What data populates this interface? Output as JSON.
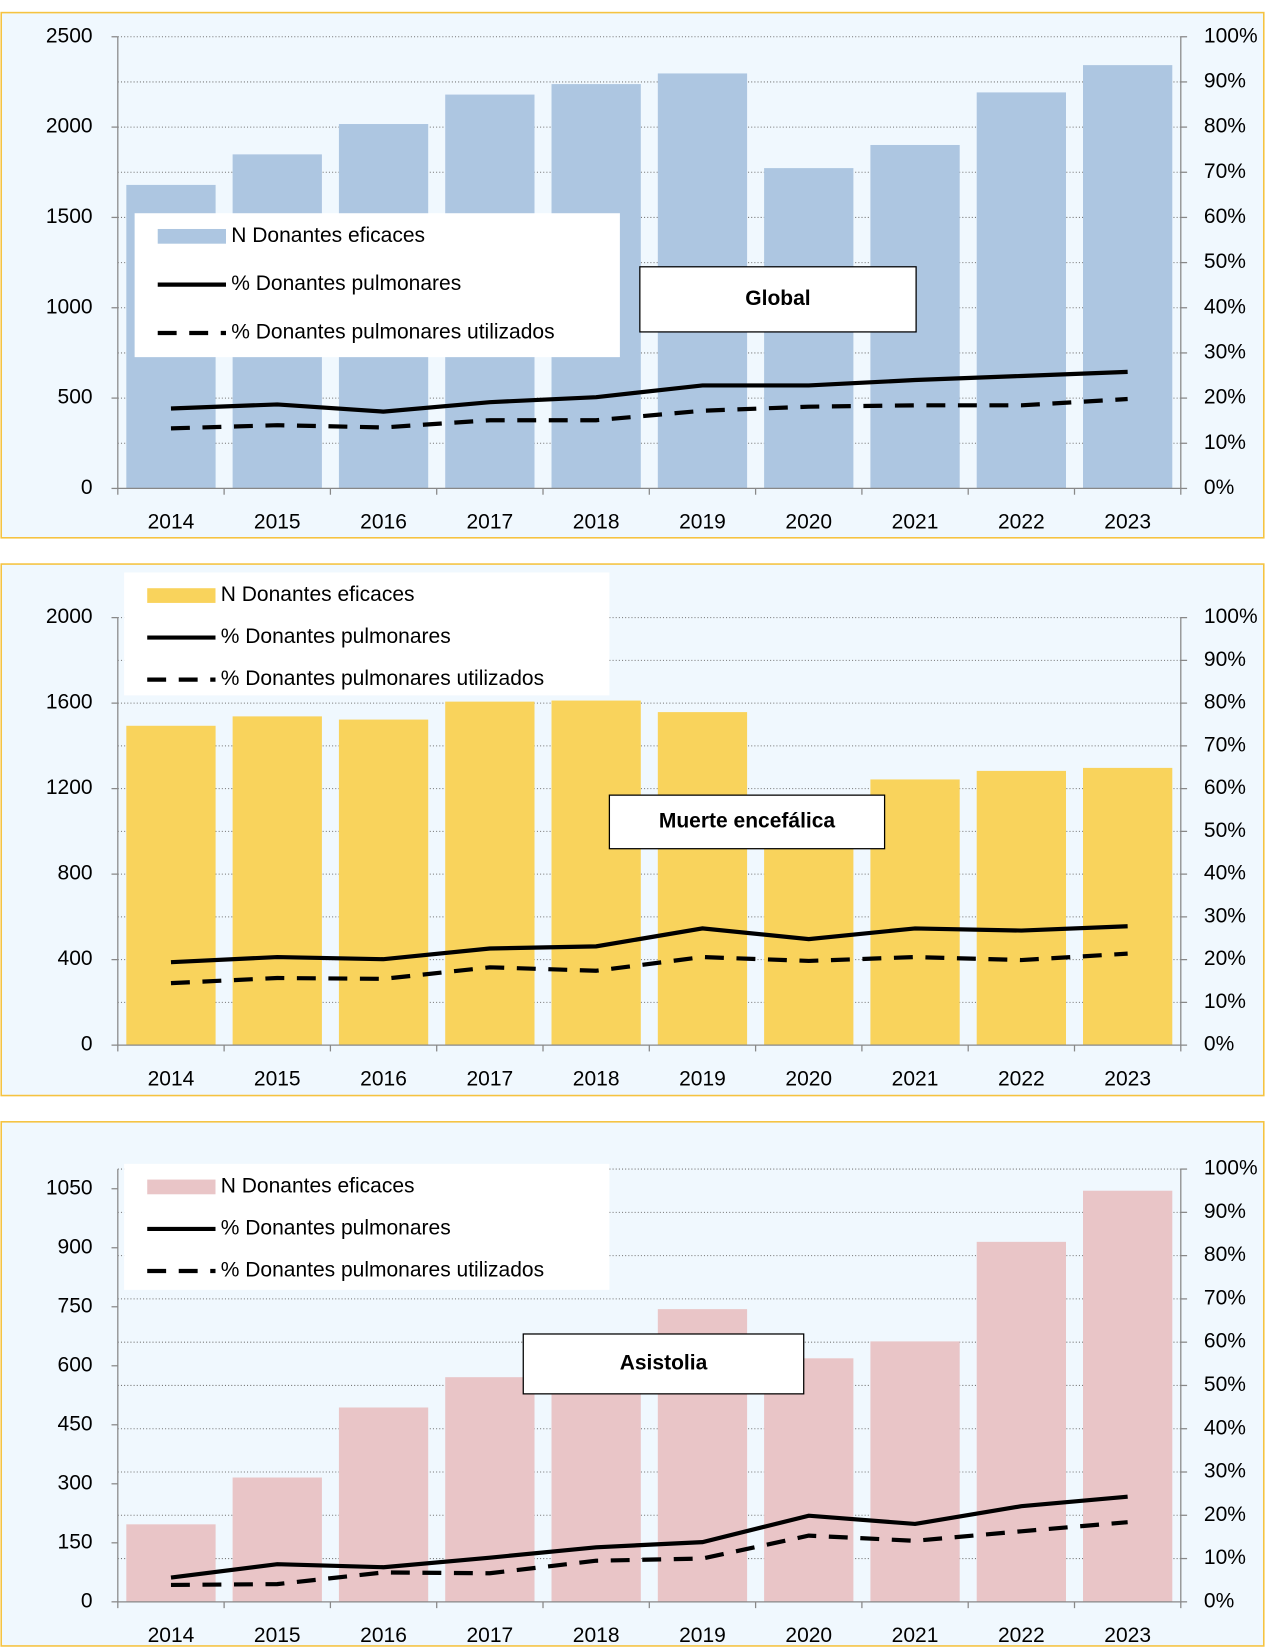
{
  "chart_data": [
    {
      "type": "bar",
      "annotation": "Global",
      "categories": [
        "2014",
        "2015",
        "2016",
        "2017",
        "2018",
        "2019",
        "2020",
        "2021",
        "2022",
        "2023"
      ],
      "series": [
        {
          "name": "N Donantes eficaces",
          "type": "bar",
          "color": "#adc6e1",
          "values": [
            1680,
            1849,
            2017,
            2180,
            2238,
            2297,
            1773,
            1901,
            2192,
            2343
          ]
        },
        {
          "name": "% Donantes pulmonares",
          "type": "line",
          "style": "solid",
          "axis": "y2",
          "color": "#000000",
          "values": [
            17.7,
            18.6,
            17.0,
            19.1,
            20.2,
            22.8,
            22.8,
            24.0,
            24.9,
            25.8
          ]
        },
        {
          "name": "% Donantes pulmonares utilizados",
          "type": "line",
          "style": "dashed",
          "axis": "y2",
          "color": "#000000",
          "values": [
            13.3,
            14.0,
            13.5,
            15.1,
            15.1,
            17.2,
            18.1,
            18.4,
            18.4,
            19.8
          ]
        }
      ],
      "ylim": [
        0,
        2500
      ],
      "yticks": [
        0,
        500,
        1000,
        1500,
        2000,
        2500
      ],
      "y2lim": [
        0,
        100
      ],
      "y2ticks": [
        {
          "value": 0,
          "label": "0%"
        },
        {
          "value": 10,
          "label": "10%"
        },
        {
          "value": 20,
          "label": "20%"
        },
        {
          "value": 30,
          "label": "30%"
        },
        {
          "value": 40,
          "label": "40%"
        },
        {
          "value": 50,
          "label": "50%"
        },
        {
          "value": 60,
          "label": "60%"
        },
        {
          "value": 70,
          "label": "70%"
        },
        {
          "value": 80,
          "label": "80%"
        },
        {
          "value": 90,
          "label": "90%"
        },
        {
          "value": 100,
          "label": "100%"
        }
      ],
      "grid": "y2"
    },
    {
      "type": "bar",
      "annotation": "Muerte encefálica",
      "categories": [
        "2014",
        "2015",
        "2016",
        "2017",
        "2018",
        "2019",
        "2020",
        "2021",
        "2022",
        "2023"
      ],
      "series": [
        {
          "name": "N Donantes eficaces",
          "type": "bar",
          "color": "#f9d35c",
          "values": [
            1494,
            1538,
            1523,
            1607,
            1612,
            1558,
            1151,
            1243,
            1283,
            1297
          ]
        },
        {
          "name": "% Donantes pulmonares",
          "type": "line",
          "style": "solid",
          "axis": "y2",
          "color": "#000000",
          "values": [
            19.4,
            20.6,
            20.1,
            22.6,
            23.1,
            27.3,
            24.8,
            27.3,
            26.8,
            27.8
          ]
        },
        {
          "name": "% Donantes pulmonares utilizados",
          "type": "line",
          "style": "dashed",
          "axis": "y2",
          "color": "#000000",
          "values": [
            14.5,
            15.7,
            15.5,
            18.2,
            17.4,
            20.6,
            19.7,
            20.6,
            19.9,
            21.4
          ]
        }
      ],
      "ylim": [
        0,
        2000
      ],
      "yticks": [
        0,
        400,
        800,
        1200,
        1600,
        2000
      ],
      "y2lim": [
        0,
        100
      ],
      "y2ticks": [
        {
          "value": 0,
          "label": "0%"
        },
        {
          "value": 10,
          "label": "10%"
        },
        {
          "value": 20,
          "label": "20%"
        },
        {
          "value": 30,
          "label": "30%"
        },
        {
          "value": 40,
          "label": "40%"
        },
        {
          "value": 50,
          "label": "50%"
        },
        {
          "value": 60,
          "label": "60%"
        },
        {
          "value": 70,
          "label": "70%"
        },
        {
          "value": 80,
          "label": "80%"
        },
        {
          "value": 90,
          "label": "90%"
        },
        {
          "value": 100,
          "label": "100%"
        }
      ],
      "grid": "y2"
    },
    {
      "type": "bar",
      "annotation": "Asistolia",
      "categories": [
        "2014",
        "2015",
        "2016",
        "2017",
        "2018",
        "2019",
        "2020",
        "2021",
        "2022",
        "2023"
      ],
      "series": [
        {
          "name": "N Donantes eficaces",
          "type": "bar",
          "color": "#e9c5c7",
          "values": [
            197,
            316,
            494,
            571,
            626,
            744,
            619,
            662,
            915,
            1045
          ]
        },
        {
          "name": "% Donantes pulmonares",
          "type": "line",
          "style": "solid",
          "axis": "y2",
          "color": "#000000",
          "values": [
            5.6,
            8.7,
            8.0,
            10.2,
            12.6,
            13.8,
            19.9,
            18.0,
            22.1,
            24.3
          ]
        },
        {
          "name": "% Donantes pulmonares utilizados",
          "type": "line",
          "style": "dashed",
          "axis": "y2",
          "color": "#000000",
          "values": [
            3.9,
            4.1,
            6.8,
            6.6,
            9.5,
            10.0,
            15.3,
            14.1,
            16.3,
            18.4
          ]
        }
      ],
      "ylim": [
        0,
        1100
      ],
      "yticks": [
        0,
        150,
        300,
        450,
        600,
        750,
        900,
        1050
      ],
      "y2lim": [
        0,
        100
      ],
      "y2ticks": [
        {
          "value": 0,
          "label": "0%"
        },
        {
          "value": 10,
          "label": "10%"
        },
        {
          "value": 20,
          "label": "20%"
        },
        {
          "value": 30,
          "label": "30%"
        },
        {
          "value": 40,
          "label": "40%"
        },
        {
          "value": 50,
          "label": "50%"
        },
        {
          "value": 60,
          "label": "60%"
        },
        {
          "value": 70,
          "label": "70%"
        },
        {
          "value": 80,
          "label": "80%"
        },
        {
          "value": 90,
          "label": "90%"
        },
        {
          "value": 100,
          "label": "100%"
        }
      ],
      "grid": "y2"
    }
  ]
}
